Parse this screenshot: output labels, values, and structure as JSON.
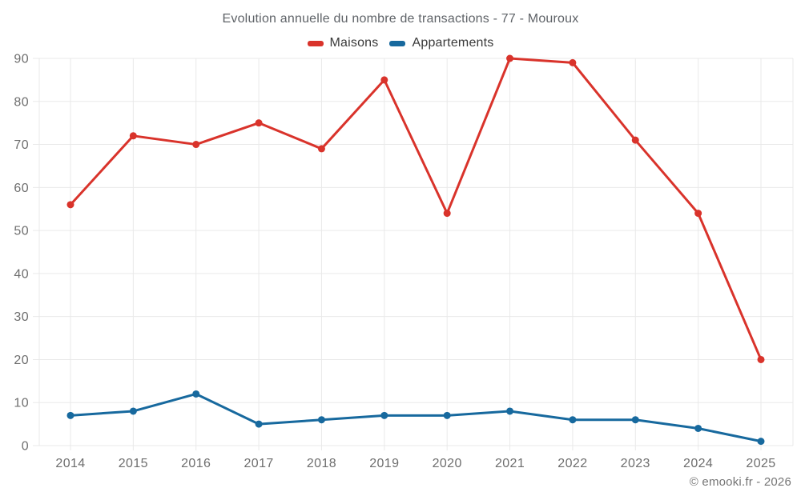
{
  "title": "Evolution annuelle du nombre de transactions - 77 - Mouroux",
  "footer": "© emooki.fr - 2026",
  "colors": {
    "grid": "#e9e9e9",
    "tick_label": "#6e6e6e",
    "title_text": "#5f6368",
    "legend_text": "#3a3a3a",
    "footer_text": "#757575",
    "background": "#ffffff",
    "maisons": "#d9332b",
    "appartements": "#17699e"
  },
  "chart_data": {
    "type": "line",
    "title": "Evolution annuelle du nombre de transactions - 77 - Mouroux",
    "categories": [
      "2014",
      "2015",
      "2016",
      "2017",
      "2018",
      "2019",
      "2020",
      "2021",
      "2022",
      "2023",
      "2024",
      "2025"
    ],
    "series": [
      {
        "name": "Maisons",
        "color": "#d9332b",
        "values": [
          56,
          72,
          70,
          75,
          69,
          85,
          54,
          90,
          89,
          71,
          54,
          20
        ]
      },
      {
        "name": "Appartements",
        "color": "#17699e",
        "values": [
          7,
          8,
          12,
          5,
          6,
          7,
          7,
          8,
          6,
          6,
          4,
          1
        ]
      }
    ],
    "xlabel": "",
    "ylabel": "",
    "ylim": [
      0,
      90
    ],
    "yticks": [
      0,
      10,
      20,
      30,
      40,
      50,
      60,
      70,
      80,
      90
    ],
    "grid": true,
    "legend_position": "top",
    "marker": "circle"
  }
}
